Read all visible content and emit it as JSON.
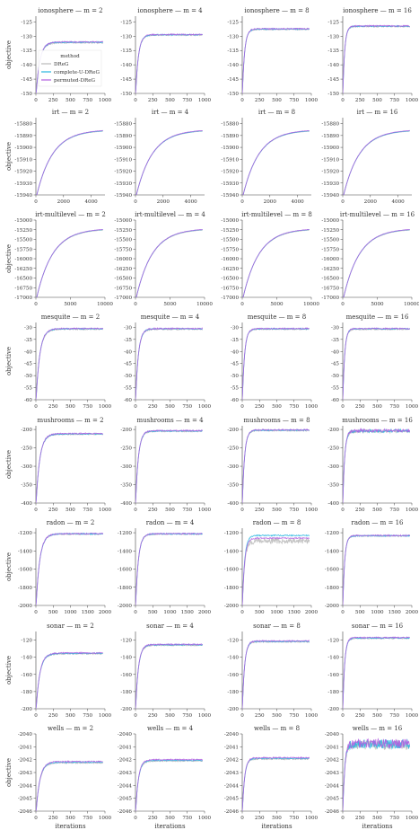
{
  "chart_data": {
    "type": "line",
    "layout": "8x4 grid of small-multiple line plots",
    "xlabel": "iterations",
    "ylabel": "objective",
    "grid": false,
    "legend": {
      "title": "method",
      "placement": "inside first panel, lower-left",
      "entries": [
        "DReG",
        "complete-U-DReG",
        "permuted-DReG"
      ]
    },
    "series_colors": {
      "DReG": "#b9b9b9",
      "complete-U-DReG": "#27b5e0",
      "permuted-DReG": "#b25fe0"
    },
    "rows": [
      {
        "dataset": "ionosphere",
        "xlim": [
          0,
          1000
        ],
        "xticks": [
          "0",
          "250",
          "500",
          "750",
          "1000"
        ],
        "ylim": [
          -150,
          -123
        ],
        "yticks": [
          "-125",
          "-130",
          "-135",
          "-140",
          "-145",
          "-150"
        ],
        "ytick_values": [
          -125,
          -130,
          -135,
          -140,
          -145,
          -150
        ],
        "panels": [
          {
            "title": "ionosphere — m = 2",
            "final": {
              "DReG": -132.3,
              "complete-U-DReG": -132.1,
              "permuted-DReG": -132.0
            }
          },
          {
            "title": "ionosphere — m = 4",
            "final": {
              "DReG": -129.6,
              "complete-U-DReG": -129.5,
              "permuted-DReG": -129.4
            }
          },
          {
            "title": "ionosphere — m = 8",
            "final": {
              "DReG": -127.6,
              "complete-U-DReG": -127.5,
              "permuted-DReG": -127.4
            }
          },
          {
            "title": "ionosphere — m = 16",
            "final": {
              "DReG": -126.6,
              "complete-U-DReG": -126.5,
              "permuted-DReG": -126.4
            }
          }
        ]
      },
      {
        "dataset": "irt",
        "xlim": [
          0,
          5000
        ],
        "xticks": [
          "0",
          "2000",
          "4000"
        ],
        "xtick_values": [
          0,
          2000,
          4000
        ],
        "ylim": [
          -15940,
          -15875
        ],
        "yticks": [
          "-15880",
          "-15890",
          "-15900",
          "-15910",
          "-15920",
          "-15930",
          "-15940"
        ],
        "ytick_values": [
          -15880,
          -15890,
          -15900,
          -15910,
          -15920,
          -15930,
          -15940
        ],
        "panels": [
          {
            "title": "irt — m = 2",
            "final": {
              "DReG": -15885.5,
              "complete-U-DReG": -15885.3,
              "permuted-DReG": -15885.0
            }
          },
          {
            "title": "irt — m = 4",
            "final": {
              "DReG": -15885.5,
              "complete-U-DReG": -15885.3,
              "permuted-DReG": -15885.0
            }
          },
          {
            "title": "irt — m = 8",
            "final": {
              "DReG": -15885.5,
              "complete-U-DReG": -15885.3,
              "permuted-DReG": -15885.0
            }
          },
          {
            "title": "irt — m = 16",
            "final": {
              "DReG": -15885.5,
              "complete-U-DReG": -15885.3,
              "permuted-DReG": -15885.0
            }
          }
        ]
      },
      {
        "dataset": "irt-multilevel",
        "xlim": [
          0,
          10000
        ],
        "xticks": [
          "0",
          "5000",
          "10000"
        ],
        "xtick_values": [
          0,
          5000,
          10000
        ],
        "ylim": [
          -17000,
          -15000
        ],
        "yticks": [
          "-15000",
          "-15250",
          "-15500",
          "-15750",
          "-16000",
          "-16250",
          "-16500",
          "-16750",
          "-17000"
        ],
        "ytick_values": [
          -15000,
          -15250,
          -15500,
          -15750,
          -16000,
          -16250,
          -16500,
          -16750,
          -17000
        ],
        "panels": [
          {
            "title": "irt-multilevel — m = 2",
            "final": {
              "DReG": -15230,
              "complete-U-DReG": -15220,
              "permuted-DReG": -15215
            }
          },
          {
            "title": "irt-multilevel — m = 4",
            "final": {
              "DReG": -15230,
              "complete-U-DReG": -15220,
              "permuted-DReG": -15215
            }
          },
          {
            "title": "irt-multilevel — m = 8",
            "final": {
              "DReG": -15230,
              "complete-U-DReG": -15220,
              "permuted-DReG": -15215
            }
          },
          {
            "title": "irt-multilevel — m = 16",
            "final": {
              "DReG": -15230,
              "complete-U-DReG": -15220,
              "permuted-DReG": -15215
            }
          }
        ]
      },
      {
        "dataset": "mesquite",
        "xlim": [
          0,
          1000
        ],
        "xticks": [
          "0",
          "250",
          "500",
          "750",
          "1000"
        ],
        "ylim": [
          -60,
          -28
        ],
        "yticks": [
          "-30",
          "-35",
          "-40",
          "-45",
          "-50",
          "-55",
          "-60"
        ],
        "ytick_values": [
          -30,
          -35,
          -40,
          -45,
          -50,
          -55,
          -60
        ],
        "panels": [
          {
            "title": "mesquite — m = 2",
            "final": {
              "DReG": -30.8,
              "complete-U-DReG": -30.6,
              "permuted-DReG": -30.5
            }
          },
          {
            "title": "mesquite — m = 4",
            "final": {
              "DReG": -30.8,
              "complete-U-DReG": -30.6,
              "permuted-DReG": -30.5
            }
          },
          {
            "title": "mesquite — m = 8",
            "final": {
              "DReG": -30.8,
              "complete-U-DReG": -30.6,
              "permuted-DReG": -30.5
            }
          },
          {
            "title": "mesquite — m = 16",
            "final": {
              "DReG": -30.8,
              "complete-U-DReG": -30.6,
              "permuted-DReG": -30.5
            }
          }
        ]
      },
      {
        "dataset": "mushrooms",
        "xlim": [
          0,
          1000
        ],
        "xticks": [
          "0",
          "250",
          "500",
          "750",
          "1000"
        ],
        "ylim": [
          -400,
          -190
        ],
        "yticks": [
          "-200",
          "-250",
          "-300",
          "-350",
          "-400"
        ],
        "ytick_values": [
          -200,
          -250,
          -300,
          -350,
          -400
        ],
        "panels": [
          {
            "title": "mushrooms — m = 2",
            "final": {
              "DReG": -213,
              "complete-U-DReG": -212,
              "permuted-DReG": -211
            }
          },
          {
            "title": "mushrooms — m = 4",
            "final": {
              "DReG": -205,
              "complete-U-DReG": -204,
              "permuted-DReG": -203
            }
          },
          {
            "title": "mushrooms — m = 8",
            "final": {
              "DReG": -203,
              "complete-U-DReG": -202,
              "permuted-DReG": -201
            }
          },
          {
            "title": "mushrooms — m = 16",
            "final": {
              "DReG": -205,
              "complete-U-DReG": -204,
              "permuted-DReG": -203
            }
          }
        ]
      },
      {
        "dataset": "radon",
        "xlim": [
          0,
          2000
        ],
        "xticks": [
          "0",
          "500",
          "1000",
          "1500",
          "2000"
        ],
        "ylim": [
          -2000,
          -1150
        ],
        "yticks": [
          "-1200",
          "-1400",
          "-1600",
          "-1800",
          "-2000"
        ],
        "ytick_values": [
          -1200,
          -1400,
          -1600,
          -1800,
          -2000
        ],
        "panels": [
          {
            "title": "radon — m = 2",
            "final": {
              "DReG": -1215,
              "complete-U-DReG": -1212,
              "permuted-DReG": -1210
            }
          },
          {
            "title": "radon — m = 4",
            "final": {
              "DReG": -1215,
              "complete-U-DReG": -1212,
              "permuted-DReG": -1210
            }
          },
          {
            "title": "radon — m = 8",
            "final": {
              "DReG": -1290,
              "complete-U-DReG": -1230,
              "permuted-DReG": -1260
            }
          },
          {
            "title": "radon — m = 16",
            "final": {
              "DReG": -1235,
              "complete-U-DReG": -1233,
              "permuted-DReG": -1230
            }
          }
        ]
      },
      {
        "dataset": "sonar",
        "xlim": [
          0,
          1000
        ],
        "xticks": [
          "0",
          "250",
          "500",
          "750",
          "1000"
        ],
        "ylim": [
          -200,
          -110
        ],
        "yticks": [
          "-120",
          "-140",
          "-160",
          "-180",
          "-200"
        ],
        "ytick_values": [
          -120,
          -140,
          -160,
          -180,
          -200
        ],
        "panels": [
          {
            "title": "sonar — m = 2",
            "final": {
              "DReG": -136,
              "complete-U-DReG": -135.5,
              "permuted-DReG": -135
            }
          },
          {
            "title": "sonar — m = 4",
            "final": {
              "DReG": -126,
              "complete-U-DReG": -125.5,
              "permuted-DReG": -125
            }
          },
          {
            "title": "sonar — m = 8",
            "final": {
              "DReG": -122,
              "complete-U-DReG": -121.5,
              "permuted-DReG": -121
            }
          },
          {
            "title": "sonar — m = 16",
            "final": {
              "DReG": -118,
              "complete-U-DReG": -117.5,
              "permuted-DReG": -117
            }
          }
        ]
      },
      {
        "dataset": "wells",
        "xlim": [
          0,
          1000
        ],
        "xticks": [
          "0",
          "250",
          "500",
          "750",
          "1000"
        ],
        "ylim": [
          -2046,
          -2040
        ],
        "yticks": [
          "-2040",
          "-2041",
          "-2042",
          "-2043",
          "-2044",
          "-2045",
          "-2046"
        ],
        "ytick_values": [
          -2040,
          -2041,
          -2042,
          -2043,
          -2044,
          -2045,
          -2046
        ],
        "panels": [
          {
            "title": "wells — m = 2",
            "final": {
              "DReG": -2042.25,
              "complete-U-DReG": -2042.2,
              "permuted-DReG": -2042.15
            }
          },
          {
            "title": "wells — m = 4",
            "final": {
              "DReG": -2042.1,
              "complete-U-DReG": -2042.05,
              "permuted-DReG": -2042.0
            }
          },
          {
            "title": "wells — m = 8",
            "final": {
              "DReG": -2041.95,
              "complete-U-DReG": -2041.9,
              "permuted-DReG": -2041.85
            }
          },
          {
            "title": "wells — m = 16",
            "final": {
              "DReG": -2040.85,
              "complete-U-DReG": -2040.8,
              "permuted-DReG": -2040.75
            }
          }
        ]
      }
    ]
  }
}
